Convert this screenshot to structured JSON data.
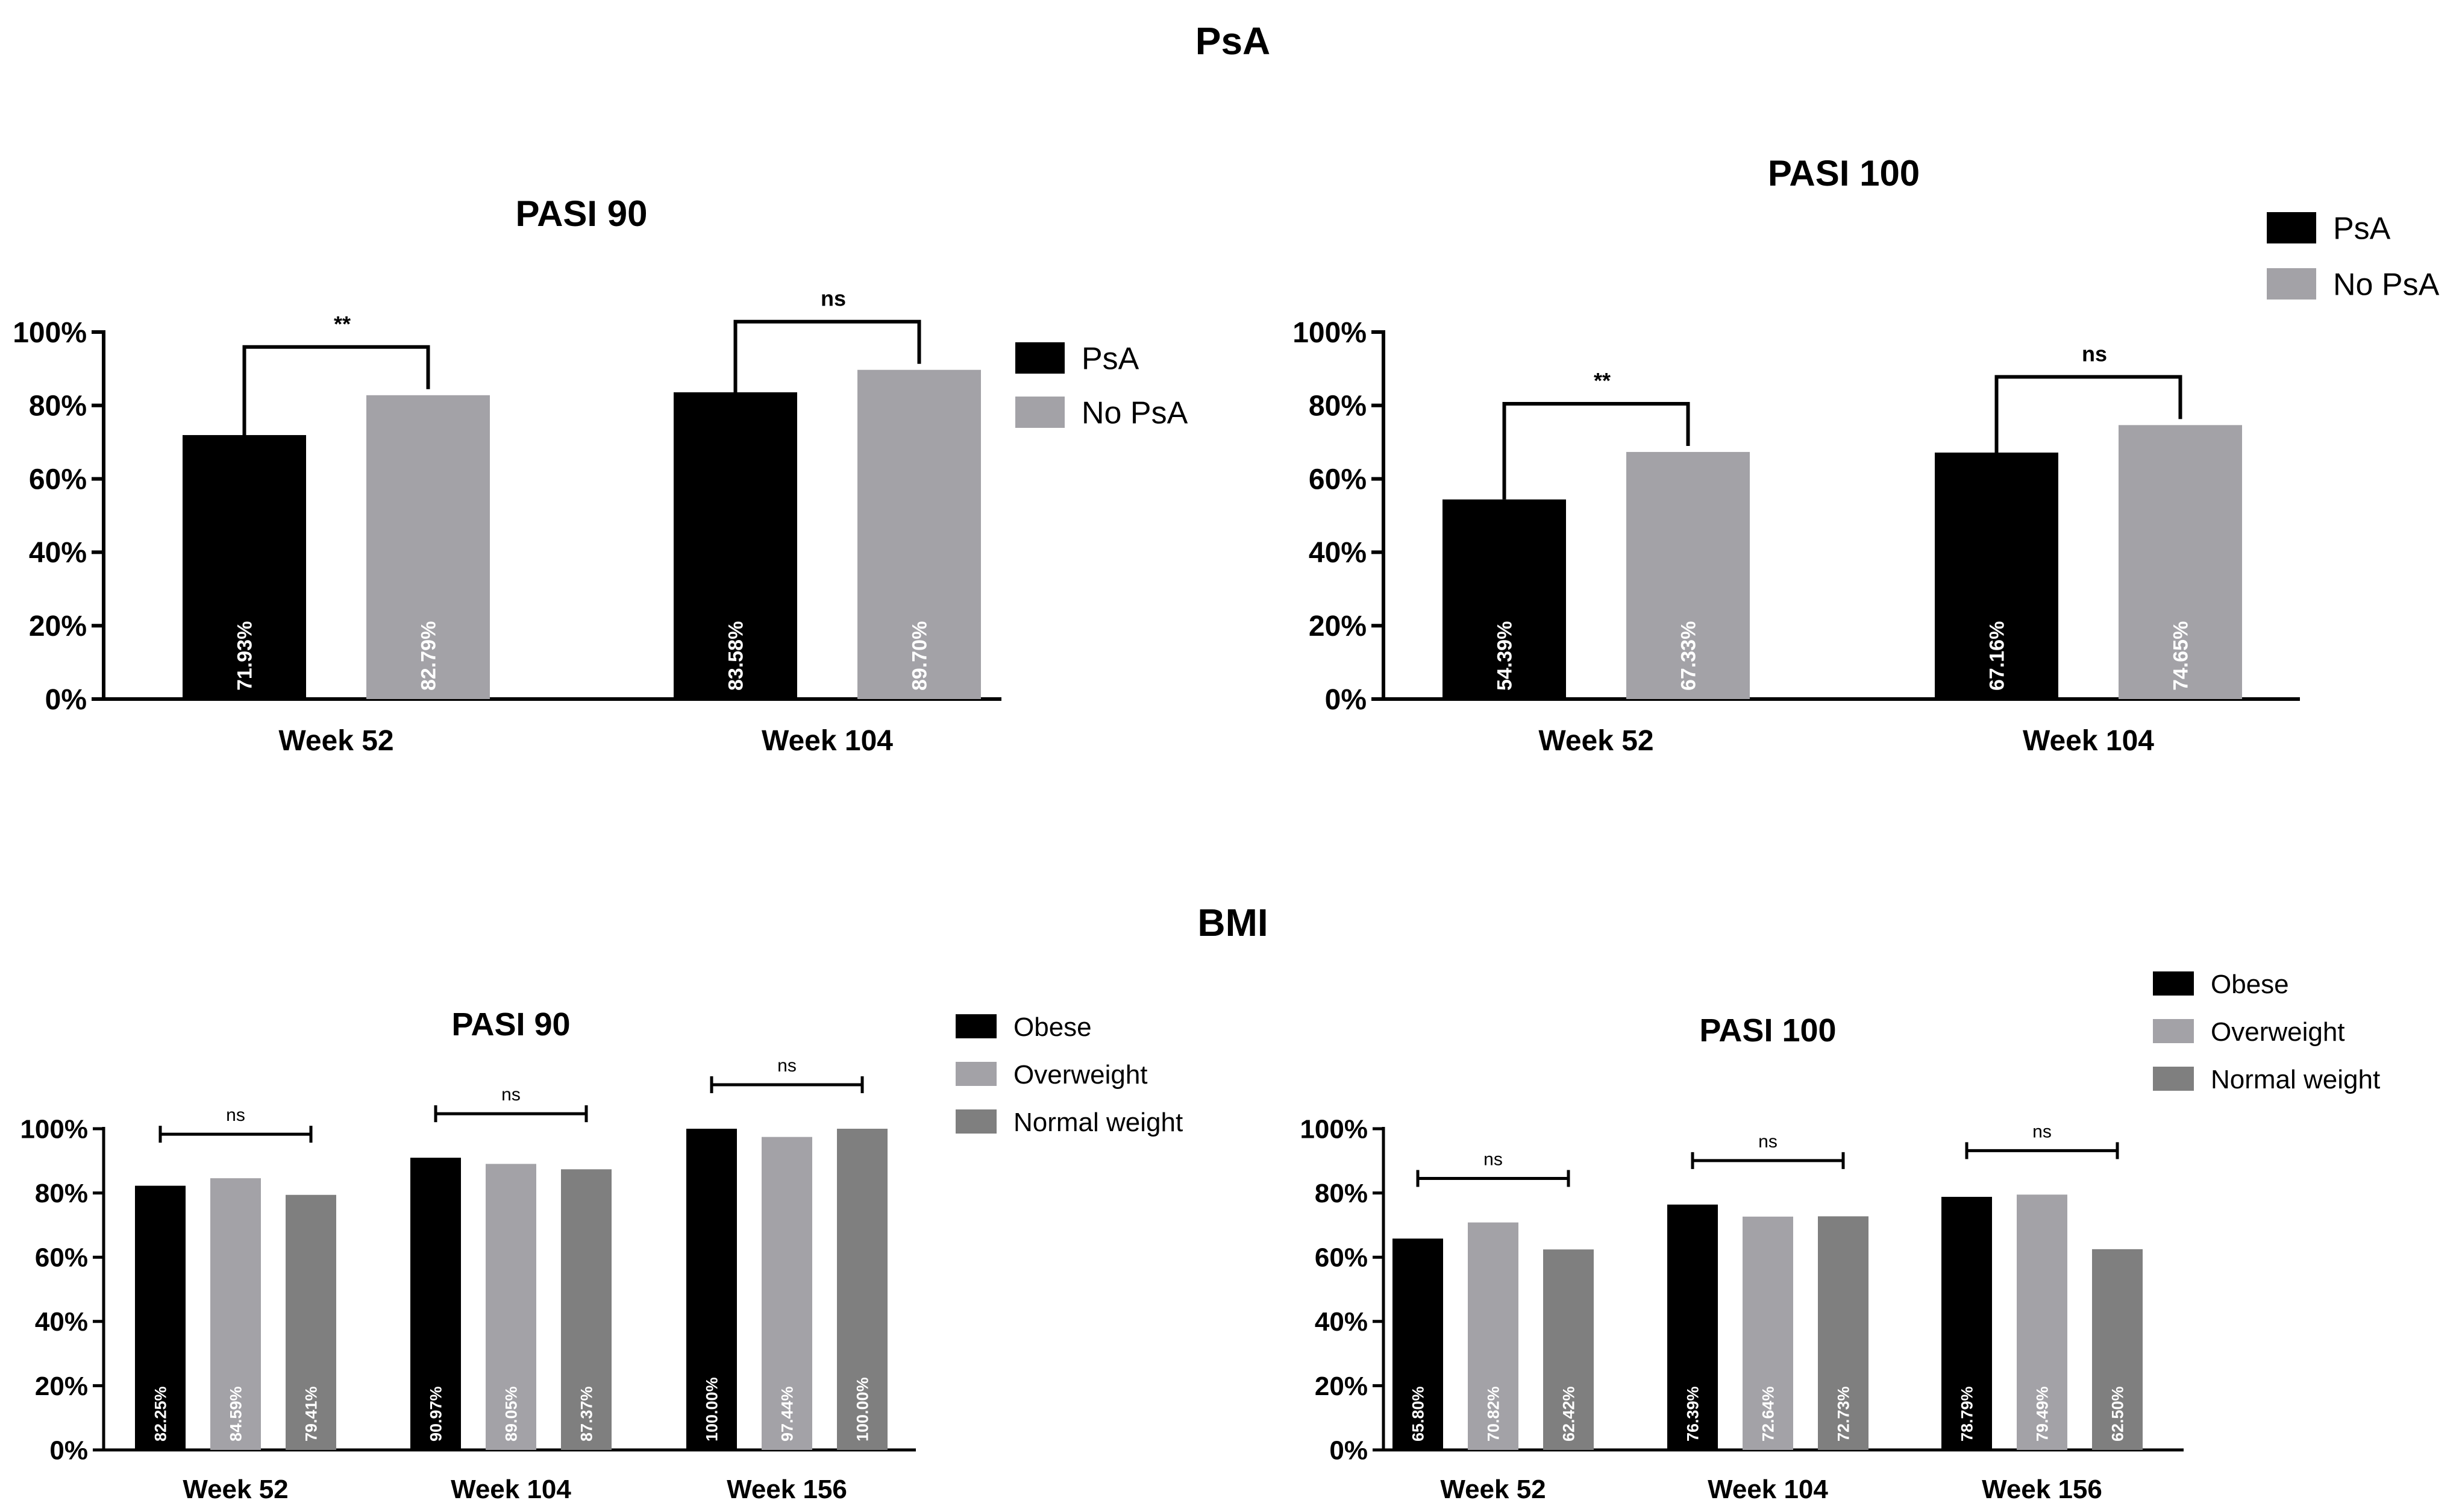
{
  "sections": [
    {
      "title": "PsA"
    },
    {
      "title": "BMI"
    }
  ],
  "chart_data": [
    {
      "type": "bar",
      "section": "PsA",
      "title": "PASI 90",
      "categories": [
        "Week 52",
        "Week 104"
      ],
      "series": [
        {
          "name": "PsA",
          "color": "#000000",
          "values": [
            71.93,
            83.58
          ],
          "labels": [
            "71.93%",
            "83.58%"
          ]
        },
        {
          "name": "No PsA",
          "color": "#a3a2a7",
          "values": [
            82.79,
            89.7
          ],
          "labels": [
            "82.79%",
            "89.70%"
          ]
        }
      ],
      "ylim": [
        0,
        100
      ],
      "yticks": [
        "0%",
        "20%",
        "40%",
        "60%",
        "80%",
        "100%"
      ],
      "significance": [
        "**",
        "ns"
      ],
      "legend_position": "right"
    },
    {
      "type": "bar",
      "section": "PsA",
      "title": "PASI 100",
      "categories": [
        "Week 52",
        "Week 104"
      ],
      "series": [
        {
          "name": "PsA",
          "color": "#000000",
          "values": [
            54.39,
            67.16
          ],
          "labels": [
            "54.39%",
            "67.16%"
          ]
        },
        {
          "name": "No PsA",
          "color": "#a3a2a7",
          "values": [
            67.33,
            74.65
          ],
          "labels": [
            "67.33%",
            "74.65%"
          ]
        }
      ],
      "ylim": [
        0,
        100
      ],
      "yticks": [
        "0%",
        "20%",
        "40%",
        "60%",
        "80%",
        "100%"
      ],
      "significance": [
        "**",
        "ns"
      ],
      "legend_position": "top-right"
    },
    {
      "type": "bar",
      "section": "BMI",
      "title": "PASI 90",
      "categories": [
        "Week 52",
        "Week 104",
        "Week 156"
      ],
      "series": [
        {
          "name": "Obese",
          "color": "#000000",
          "values": [
            82.25,
            90.97,
            100.0
          ],
          "labels": [
            "82.25%",
            "90.97%",
            "100.00%"
          ]
        },
        {
          "name": "Overweight",
          "color": "#a3a2a7",
          "values": [
            84.59,
            89.05,
            97.44
          ],
          "labels": [
            "84.59%",
            "89.05%",
            "97.44%"
          ]
        },
        {
          "name": "Normal weight",
          "color": "#7f7f7f",
          "values": [
            79.41,
            87.37,
            100.0
          ],
          "labels": [
            "79.41%",
            "87.37%",
            "100.00%"
          ]
        }
      ],
      "ylim": [
        0,
        100
      ],
      "yticks": [
        "0%",
        "20%",
        "40%",
        "60%",
        "80%",
        "100%"
      ],
      "significance": [
        "ns",
        "ns",
        "ns"
      ],
      "legend_position": "right"
    },
    {
      "type": "bar",
      "section": "BMI",
      "title": "PASI 100",
      "categories": [
        "Week 52",
        "Week 104",
        "Week 156"
      ],
      "series": [
        {
          "name": "Obese",
          "color": "#000000",
          "values": [
            65.8,
            76.39,
            78.79
          ],
          "labels": [
            "65.80%",
            "76.39%",
            "78.79%"
          ]
        },
        {
          "name": "Overweight",
          "color": "#a3a2a7",
          "values": [
            70.82,
            72.64,
            79.49
          ],
          "labels": [
            "70.82%",
            "72.64%",
            "79.49%"
          ]
        },
        {
          "name": "Normal weight",
          "color": "#7f7f7f",
          "values": [
            62.42,
            72.73,
            62.5
          ],
          "labels": [
            "62.42%",
            "72.73%",
            "62.50%"
          ]
        }
      ],
      "ylim": [
        0,
        100
      ],
      "yticks": [
        "0%",
        "20%",
        "40%",
        "60%",
        "80%",
        "100%"
      ],
      "significance": [
        "ns",
        "ns",
        "ns"
      ],
      "legend_position": "top-right"
    }
  ]
}
